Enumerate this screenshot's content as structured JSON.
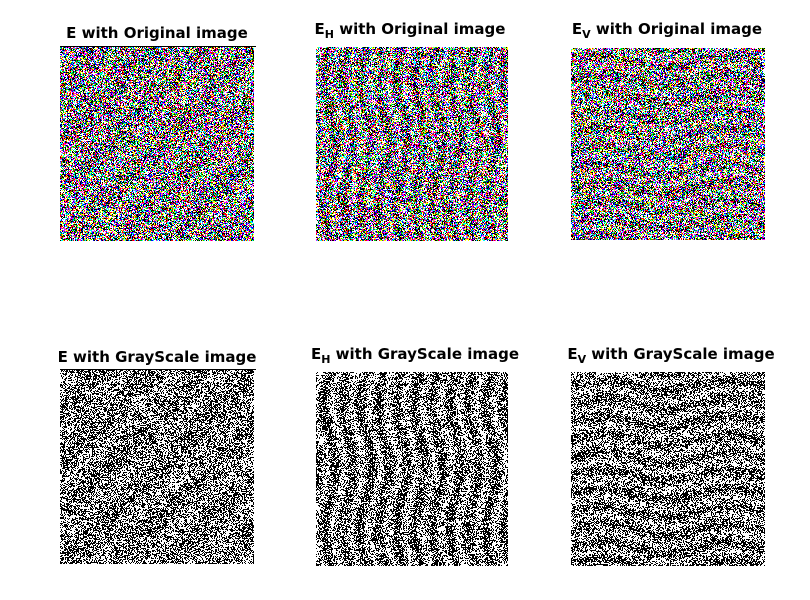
{
  "figure": {
    "panels": [
      {
        "id": "e-original",
        "title_main": "E",
        "title_sub": "",
        "title_rest": " with Original image",
        "mode": "color",
        "style": "uniform"
      },
      {
        "id": "eh-original",
        "title_main": "E",
        "title_sub": "H",
        "title_rest": " with Original image",
        "mode": "color",
        "style": "vertical"
      },
      {
        "id": "ev-original",
        "title_main": "E",
        "title_sub": "V",
        "title_rest": " with Original image",
        "mode": "color",
        "style": "horizontal"
      },
      {
        "id": "e-grayscale",
        "title_main": "E",
        "title_sub": "",
        "title_rest": " with GrayScale image",
        "mode": "binary",
        "style": "uniform"
      },
      {
        "id": "eh-grayscale",
        "title_main": "E",
        "title_sub": "H",
        "title_rest": " with GrayScale image",
        "mode": "binary",
        "style": "vertical"
      },
      {
        "id": "ev-grayscale",
        "title_main": "E",
        "title_sub": "V",
        "title_rest": " with GrayScale image",
        "mode": "binary",
        "style": "horizontal"
      }
    ],
    "palette": [
      "#ff0000",
      "#00c800",
      "#0000ff",
      "#00ffff",
      "#ff00ff",
      "#ffff00",
      "#ffffff",
      "#000000",
      "#ff8080",
      "#80ff80"
    ]
  }
}
